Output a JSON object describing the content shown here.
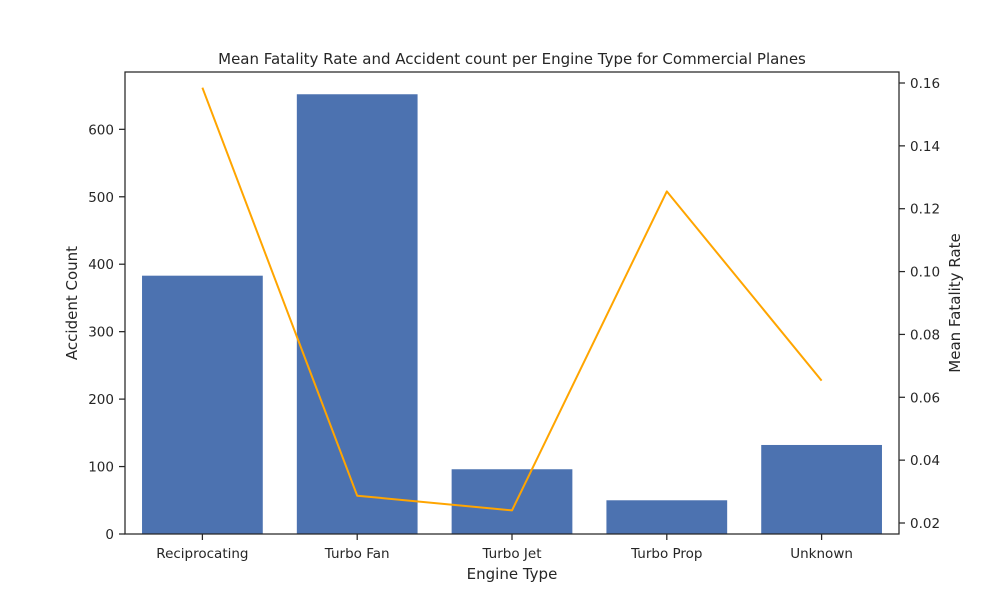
{
  "chart_data": {
    "type": "bar",
    "title": "Mean Fatality Rate and Accident count per Engine Type for Commercial Planes",
    "xlabel": "Engine Type",
    "ylabel": "Accident Count",
    "y2label": "Mean Fatality Rate",
    "categories": [
      "Reciprocating",
      "Turbo Fan",
      "Turbo Jet",
      "Turbo Prop",
      "Unknown"
    ],
    "series": [
      {
        "type": "bar",
        "axis": "left",
        "values": [
          383,
          652,
          96,
          50,
          132
        ],
        "color": "#4c72b0"
      },
      {
        "type": "line",
        "axis": "right",
        "values": [
          0.1585,
          0.0287,
          0.024,
          0.1255,
          0.0653
        ],
        "color": "#ffa500"
      }
    ],
    "ylim": [
      0,
      685
    ],
    "y2lim": [
      0.0165,
      0.1635
    ],
    "yticks": [
      0,
      100,
      200,
      300,
      400,
      500,
      600
    ],
    "y2ticks": [
      "0.02",
      "0.04",
      "0.06",
      "0.08",
      "0.10",
      "0.12",
      "0.14",
      "0.16"
    ],
    "grid": false,
    "legend": "none"
  }
}
